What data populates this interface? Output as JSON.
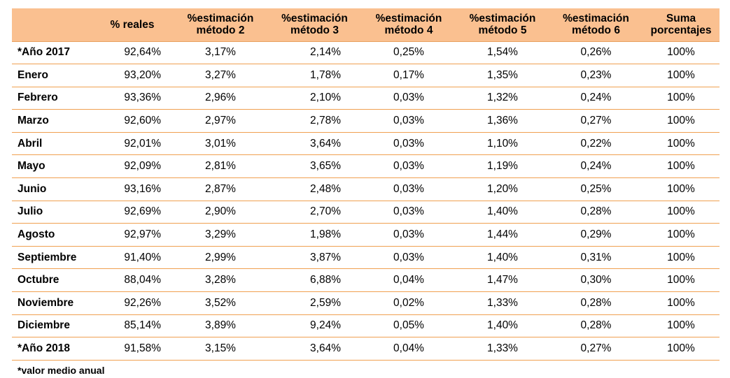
{
  "table": {
    "headers": [
      {
        "line1": "",
        "line2": ""
      },
      {
        "line1": "% reales",
        "line2": ""
      },
      {
        "line1": "%estimación",
        "line2": "método  2"
      },
      {
        "line1": "%estimación",
        "line2": "método  3"
      },
      {
        "line1": "%estimación",
        "line2": "método  4"
      },
      {
        "line1": "%estimación",
        "line2": "método  5"
      },
      {
        "line1": "%estimación",
        "line2": "método  6"
      },
      {
        "line1": "Suma",
        "line2": "porcentajes"
      }
    ],
    "rows": [
      {
        "label": "*Año 2017",
        "reales": "92,64%",
        "m2": "3,17%",
        "m3": "2,14%",
        "m4": "0,25%",
        "m5": "1,54%",
        "m6": "0,26%",
        "suma": "100%"
      },
      {
        "label": "Enero",
        "reales": "93,20%",
        "m2": "3,27%",
        "m3": "1,78%",
        "m4": "0,17%",
        "m5": "1,35%",
        "m6": "0,23%",
        "suma": "100%"
      },
      {
        "label": "Febrero",
        "reales": "93,36%",
        "m2": "2,96%",
        "m3": "2,10%",
        "m4": "0,03%",
        "m5": "1,32%",
        "m6": "0,24%",
        "suma": "100%"
      },
      {
        "label": "Marzo",
        "reales": "92,60%",
        "m2": "2,97%",
        "m3": "2,78%",
        "m4": "0,03%",
        "m5": "1,36%",
        "m6": "0,27%",
        "suma": "100%"
      },
      {
        "label": "Abril",
        "reales": "92,01%",
        "m2": "3,01%",
        "m3": "3,64%",
        "m4": "0,03%",
        "m5": "1,10%",
        "m6": "0,22%",
        "suma": "100%"
      },
      {
        "label": "Mayo",
        "reales": "92,09%",
        "m2": "2,81%",
        "m3": "3,65%",
        "m4": "0,03%",
        "m5": "1,19%",
        "m6": "0,24%",
        "suma": "100%"
      },
      {
        "label": "Junio",
        "reales": "93,16%",
        "m2": "2,87%",
        "m3": "2,48%",
        "m4": "0,03%",
        "m5": "1,20%",
        "m6": "0,25%",
        "suma": "100%"
      },
      {
        "label": "Julio",
        "reales": "92,69%",
        "m2": "2,90%",
        "m3": "2,70%",
        "m4": "0,03%",
        "m5": "1,40%",
        "m6": "0,28%",
        "suma": "100%"
      },
      {
        "label": "Agosto",
        "reales": "92,97%",
        "m2": "3,29%",
        "m3": "1,98%",
        "m4": "0,03%",
        "m5": "1,44%",
        "m6": "0,29%",
        "suma": "100%"
      },
      {
        "label": "Septiembre",
        "reales": "91,40%",
        "m2": "2,99%",
        "m3": "3,87%",
        "m4": "0,03%",
        "m5": "1,40%",
        "m6": "0,31%",
        "suma": "100%"
      },
      {
        "label": "Octubre",
        "reales": "88,04%",
        "m2": "3,28%",
        "m3": "6,88%",
        "m4": "0,04%",
        "m5": "1,47%",
        "m6": "0,30%",
        "suma": "100%"
      },
      {
        "label": "Noviembre",
        "reales": "92,26%",
        "m2": "3,52%",
        "m3": "2,59%",
        "m4": "0,02%",
        "m5": "1,33%",
        "m6": "0,28%",
        "suma": "100%"
      },
      {
        "label": "Diciembre",
        "reales": "85,14%",
        "m2": "3,89%",
        "m3": "9,24%",
        "m4": "0,05%",
        "m5": "1,40%",
        "m6": "0,28%",
        "suma": "100%"
      },
      {
        "label": "*Año 2018",
        "reales": "91,58%",
        "m2": "3,15%",
        "m3": "3,64%",
        "m4": "0,04%",
        "m5": "1,33%",
        "m6": "0,27%",
        "suma": "100%"
      }
    ]
  },
  "footnote": "*valor medio anual",
  "colors": {
    "header_background": "#fac090",
    "row_divider": "#f0a050"
  }
}
